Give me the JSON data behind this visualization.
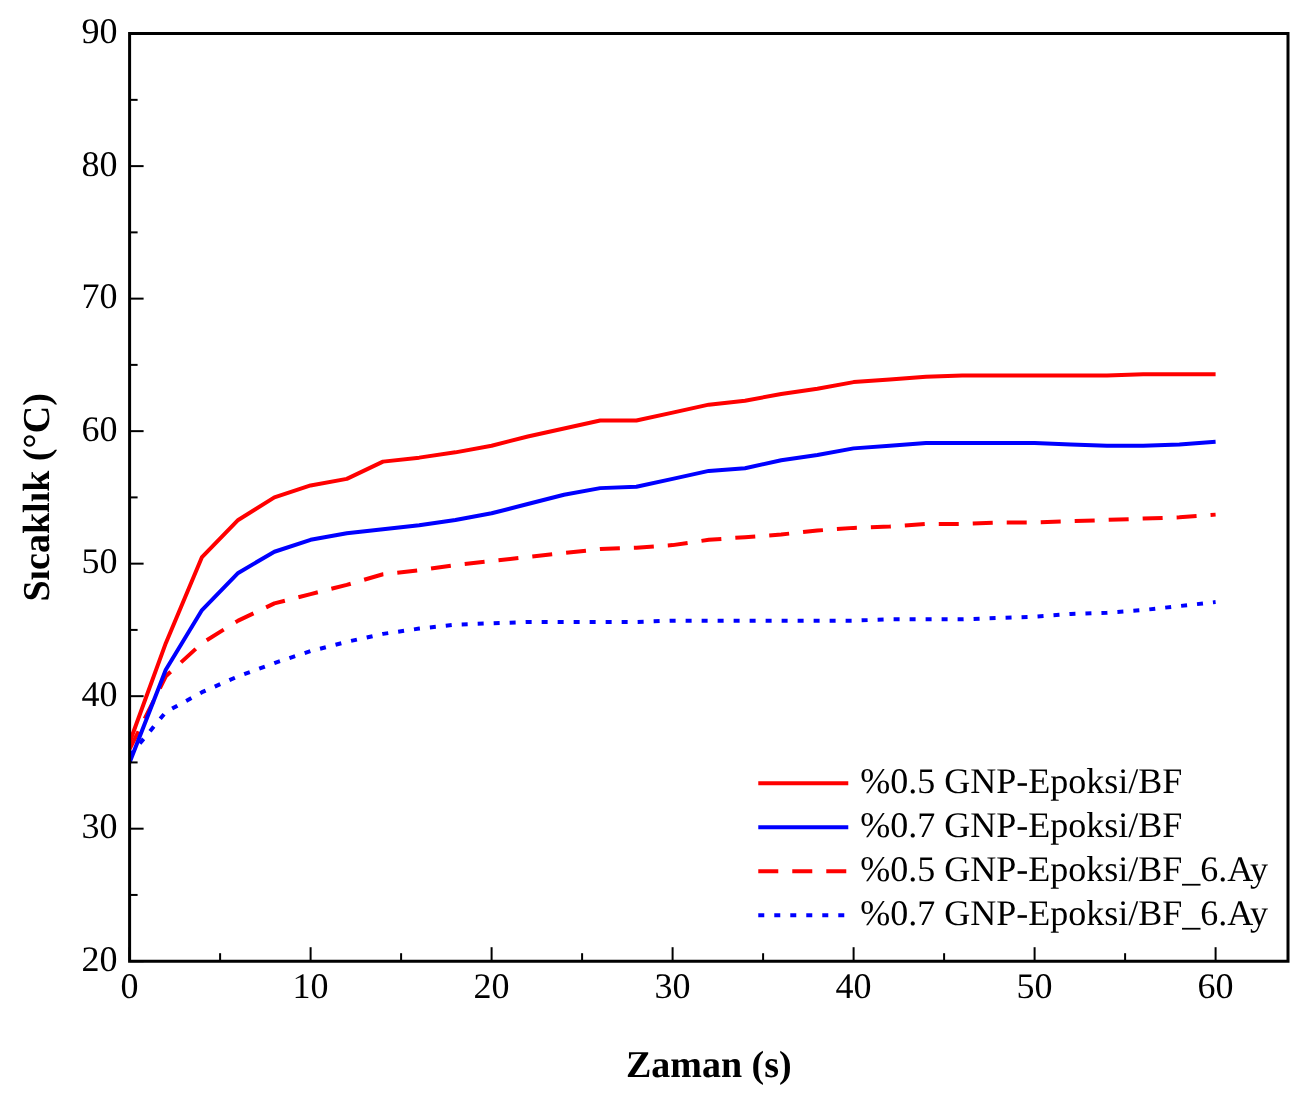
{
  "chart_data": {
    "type": "line",
    "xlabel": "Zaman (s)",
    "ylabel": "Sıcaklık (°C)",
    "x": [
      0,
      2,
      4,
      6,
      8,
      10,
      12,
      14,
      16,
      18,
      20,
      22,
      24,
      26,
      28,
      30,
      32,
      34,
      36,
      38,
      40,
      42,
      44,
      46,
      48,
      50,
      52,
      54,
      56,
      58,
      60
    ],
    "series": [
      {
        "name": "%0.5 GNP-Epoksi/BF",
        "color": "#ff0000",
        "line_style": "solid",
        "values": [
          36.5,
          44,
          50.5,
          53.3,
          55,
          55.9,
          56.4,
          57.7,
          58,
          58.4,
          58.9,
          59.6,
          60.2,
          60.8,
          60.8,
          61.4,
          62,
          62.3,
          62.8,
          63.2,
          63.7,
          63.9,
          64.1,
          64.2,
          64.2,
          64.2,
          64.2,
          64.2,
          64.3,
          64.3,
          64.3
        ]
      },
      {
        "name": "%0.7 GNP-Epoksi/BF",
        "color": "#0000ff",
        "line_style": "solid",
        "values": [
          35,
          42,
          46.5,
          49.3,
          50.9,
          51.8,
          52.3,
          52.6,
          52.9,
          53.3,
          53.8,
          54.5,
          55.2,
          55.7,
          55.8,
          56.4,
          57,
          57.2,
          57.8,
          58.2,
          58.7,
          58.9,
          59.1,
          59.1,
          59.1,
          59.1,
          59,
          58.9,
          58.9,
          59,
          59.2
        ]
      },
      {
        "name": "%0.5 GNP-Epoksi/BF_6.Ay",
        "color": "#ff0000",
        "line_style": "dashed",
        "values": [
          36,
          41.5,
          44,
          45.7,
          47,
          47.7,
          48.4,
          49.2,
          49.5,
          49.9,
          50.2,
          50.5,
          50.8,
          51.1,
          51.2,
          51.4,
          51.8,
          52,
          52.2,
          52.5,
          52.7,
          52.8,
          53,
          53,
          53.1,
          53.1,
          53.2,
          53.3,
          53.4,
          53.5,
          53.7
        ]
      },
      {
        "name": "%0.7 GNP-Epoksi/BF_6.Ay",
        "color": "#0000ff",
        "line_style": "dotted",
        "values": [
          35.5,
          38.8,
          40.3,
          41.5,
          42.5,
          43.4,
          44.1,
          44.7,
          45.1,
          45.4,
          45.5,
          45.6,
          45.6,
          45.6,
          45.6,
          45.7,
          45.7,
          45.7,
          45.7,
          45.7,
          45.7,
          45.8,
          45.8,
          45.8,
          45.9,
          46,
          46.2,
          46.3,
          46.5,
          46.8,
          47.1
        ]
      }
    ],
    "xlim": [
      0,
      64
    ],
    "xticks": [
      0,
      {
        "value": 5,
        "label": null
      },
      10,
      {
        "value": 15,
        "label": null
      },
      20,
      {
        "value": 25,
        "label": null
      },
      30,
      {
        "value": 35,
        "label": null
      },
      40,
      {
        "value": 45,
        "label": null
      },
      50,
      {
        "value": 55,
        "label": null
      },
      60
    ],
    "ylim": [
      20,
      90
    ],
    "yticks": [
      20,
      {
        "value": 25,
        "label": null
      },
      30,
      {
        "value": 35,
        "label": null
      },
      40,
      {
        "value": 45,
        "label": null
      },
      50,
      {
        "value": 55,
        "label": null
      },
      60,
      {
        "value": 65,
        "label": null
      },
      70,
      {
        "value": 75,
        "label": null
      },
      80,
      {
        "value": 85,
        "label": null
      },
      90
    ],
    "grid": false,
    "legend": "bottom right",
    "marker": "none"
  }
}
